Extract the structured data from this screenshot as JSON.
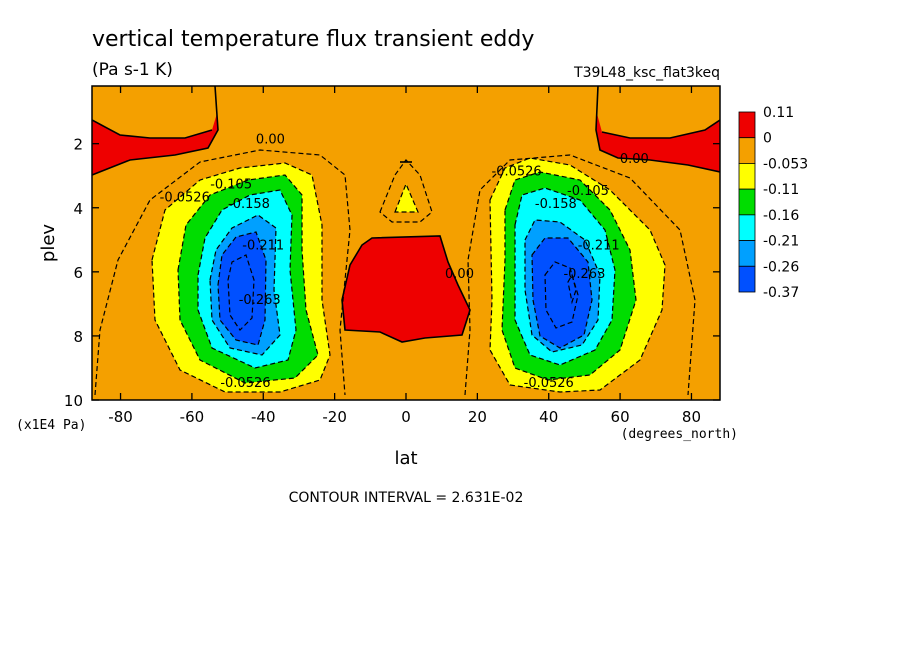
{
  "chart_data": {
    "type": "heatmap",
    "title": "vertical temperature flux transient eddy",
    "subtitle": "(Pa s-1 K)",
    "run_label": "T39L48_ksc_flat3keq",
    "xlabel": "lat",
    "ylabel": "plev",
    "x_units": "(degrees_north)",
    "y_units": "(x1E4 Pa)",
    "xlim": [
      -88,
      88
    ],
    "ylim": [
      10,
      0.2
    ],
    "x_ticks": [
      -80,
      -60,
      -40,
      -20,
      0,
      20,
      40,
      60,
      80
    ],
    "y_ticks": [
      2,
      4,
      6,
      8,
      10
    ],
    "footer": "CONTOUR INTERVAL = 2.631E-02",
    "colorbar": {
      "labels": [
        "0.11",
        "0",
        "-0.053",
        "-0.11",
        "-0.16",
        "-0.21",
        "-0.26",
        "-0.37"
      ],
      "colors": [
        "#ee0000",
        "#f4a000",
        "#ffff00",
        "#00dd00",
        "#00ffff",
        "#00a0ff",
        "#0050ff"
      ]
    },
    "contour_labels": [
      {
        "text": "0.00",
        "lat": -38,
        "plev": 2.0
      },
      {
        "text": "0.00",
        "lat": 64,
        "plev": 2.6
      },
      {
        "text": "0.00",
        "lat": 15,
        "plev": 6.2
      },
      {
        "text": "-0.0526",
        "lat": -62,
        "plev": 3.8
      },
      {
        "text": "-0.105",
        "lat": -49,
        "plev": 3.4
      },
      {
        "text": "-0.158",
        "lat": -44,
        "plev": 4.0
      },
      {
        "text": "-0.211",
        "lat": -40,
        "plev": 5.3
      },
      {
        "text": "-0.263",
        "lat": -41,
        "plev": 7.0
      },
      {
        "text": "-0.0526",
        "lat": -45,
        "plev": 9.6
      },
      {
        "text": "-0.0526",
        "lat": 31,
        "plev": 3.0
      },
      {
        "text": "-0.105",
        "lat": 51,
        "plev": 3.6
      },
      {
        "text": "-0.158",
        "lat": 42,
        "plev": 4.0
      },
      {
        "text": "-0.211",
        "lat": 54,
        "plev": 5.3
      },
      {
        "text": "-0.263",
        "lat": 50,
        "plev": 6.2
      },
      {
        "text": "-0.0526",
        "lat": 40,
        "plev": 9.6
      }
    ]
  }
}
